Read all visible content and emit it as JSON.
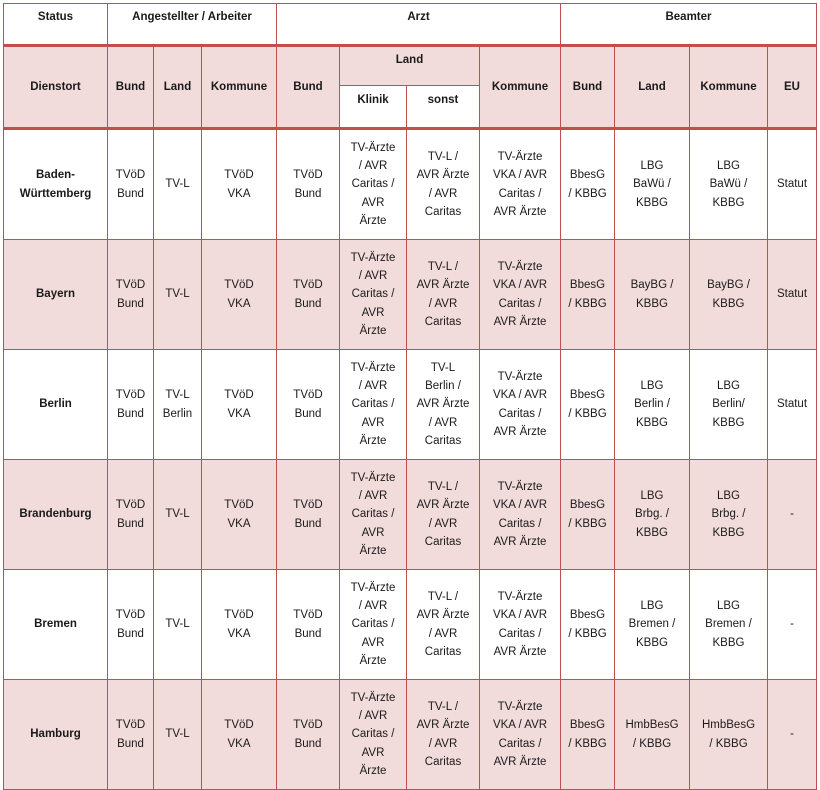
{
  "header": {
    "status": "Status",
    "angestellter": "Angestellter / Arbeiter",
    "arzt": "Arzt",
    "beamter": "Beamter",
    "dienstort": "Dienstort",
    "bund": "Bund",
    "land": "Land",
    "kommune": "Kommune",
    "klinik": "Klinik",
    "sonst": "sonst",
    "eu": "EU"
  },
  "rows": [
    {
      "name": "Baden-\nWürttemberg",
      "cells": [
        "TVöD\nBund",
        "TV-L",
        "TVöD\nVKA",
        "TVöD\nBund",
        "TV-Ärzte\n/ AVR\nCaritas /\nAVR\nÄrzte",
        "TV-L /\nAVR Ärzte\n/ AVR\nCaritas",
        "TV-Ärzte\nVKA / AVR\nCaritas /\nAVR Ärzte",
        "BbesG\n/ KBBG",
        "LBG\nBaWü /\nKBBG",
        "LBG\nBaWü /\nKBBG",
        "Statut"
      ]
    },
    {
      "name": "Bayern",
      "cells": [
        "TVöD\nBund",
        "TV-L",
        "TVöD\nVKA",
        "TVöD\nBund",
        "TV-Ärzte\n/ AVR\nCaritas /\nAVR\nÄrzte",
        "TV-L /\nAVR Ärzte\n/ AVR\nCaritas",
        "TV-Ärzte\nVKA / AVR\nCaritas /\nAVR Ärzte",
        "BbesG\n/ KBBG",
        "BayBG /\nKBBG",
        "BayBG /\nKBBG",
        "Statut"
      ]
    },
    {
      "name": "Berlin",
      "cells": [
        "TVöD\nBund",
        "TV-L\nBerlin",
        "TVöD\nVKA",
        "TVöD\nBund",
        "TV-Ärzte\n/ AVR\nCaritas /\nAVR\nÄrzte",
        "TV-L\nBerlin /\nAVR Ärzte\n/ AVR\nCaritas",
        "TV-Ärzte\nVKA / AVR\nCaritas /\nAVR Ärzte",
        "BbesG\n/ KBBG",
        "LBG\nBerlin /\nKBBG",
        "LBG\nBerlin/\nKBBG",
        "Statut"
      ]
    },
    {
      "name": "Brandenburg",
      "cells": [
        "TVöD\nBund",
        "TV-L",
        "TVöD\nVKA",
        "TVöD\nBund",
        "TV-Ärzte\n/ AVR\nCaritas /\nAVR\nÄrzte",
        "TV-L /\nAVR Ärzte\n/ AVR\nCaritas",
        "TV-Ärzte\nVKA / AVR\nCaritas /\nAVR Ärzte",
        "BbesG\n/ KBBG",
        "LBG\nBrbg. /\nKBBG",
        "LBG\nBrbg. /\nKBBG",
        "-"
      ]
    },
    {
      "name": "Bremen",
      "cells": [
        "TVöD\nBund",
        "TV-L",
        "TVöD\nVKA",
        "TVöD\nBund",
        "TV-Ärzte\n/ AVR\nCaritas /\nAVR\nÄrzte",
        "TV-L /\nAVR Ärzte\n/ AVR\nCaritas",
        "TV-Ärzte\nVKA / AVR\nCaritas /\nAVR Ärzte",
        "BbesG\n/ KBBG",
        "LBG\nBremen /\nKBBG",
        "LBG\nBremen /\nKBBG",
        "-"
      ]
    },
    {
      "name": "Hamburg",
      "cells": [
        "TVöD\nBund",
        "TV-L",
        "TVöD\nVKA",
        "TVöD\nBund",
        "TV-Ärzte\n/ AVR\nCaritas /\nAVR\nÄrzte",
        "TV-L /\nAVR Ärzte\n/ AVR\nCaritas",
        "TV-Ärzte\nVKA / AVR\nCaritas /\nAVR Ärzte",
        "BbesG\n/ KBBG",
        "HmbBesG\n/ KBBG",
        "HmbBesG\n/ KBBG",
        "-"
      ]
    }
  ],
  "colors": {
    "border": "#c0504d",
    "shade": "#f2dcdb"
  }
}
